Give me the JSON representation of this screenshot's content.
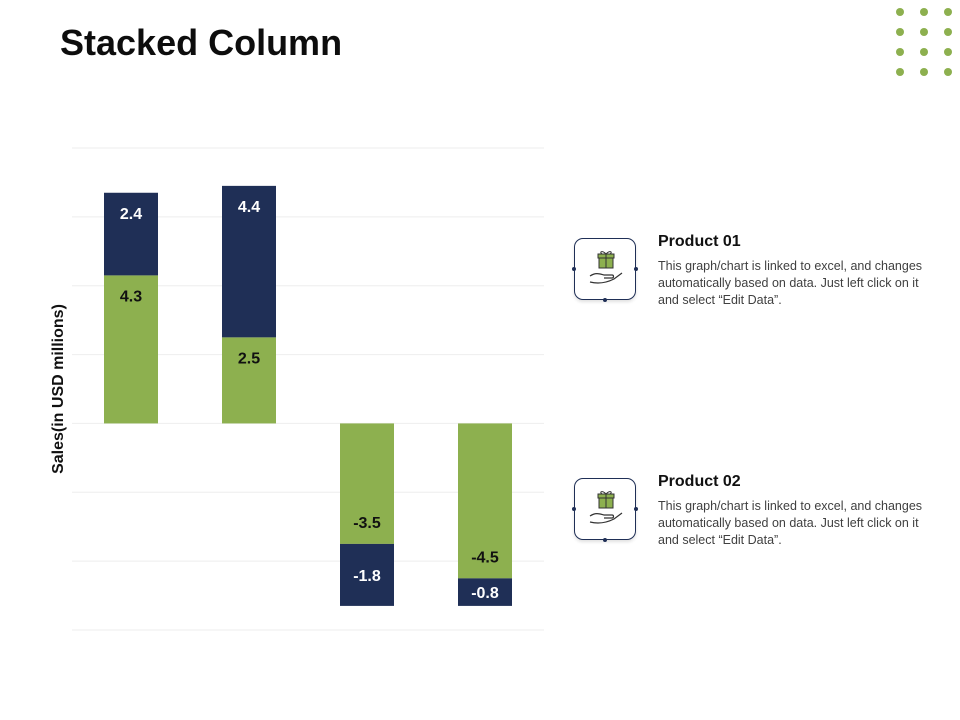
{
  "page": {
    "title": "Stacked Column"
  },
  "colors": {
    "series1": "#8db04f",
    "series2": "#1f2f56",
    "decor_dots": "#8db04f",
    "gridline": "#eeeeee"
  },
  "chart_data": {
    "type": "bar",
    "stacked": true,
    "categories": [
      "",
      "",
      "",
      ""
    ],
    "series": [
      {
        "name": "Product 01",
        "color": "#8db04f",
        "values": [
          4.3,
          2.5,
          -3.5,
          -4.5
        ]
      },
      {
        "name": "Product 02",
        "color": "#1f2f56",
        "values": [
          2.4,
          4.4,
          -1.8,
          -0.8
        ]
      }
    ],
    "xlabel": "",
    "ylabel": "Sales(in USD millions)",
    "ylim": [
      -6,
      8
    ],
    "grid": true,
    "legend_position": "right"
  },
  "legend": [
    {
      "name": "Product 01",
      "icon": "gift-hand-icon",
      "desc": "This graph/chart is linked to excel, and changes automatically based on data. Just left click on it and select “Edit Data”."
    },
    {
      "name": "Product 02",
      "icon": "gift-hand-icon",
      "desc": "This graph/chart is linked to excel, and changes automatically based on data. Just left click on it and select “Edit Data”."
    }
  ]
}
